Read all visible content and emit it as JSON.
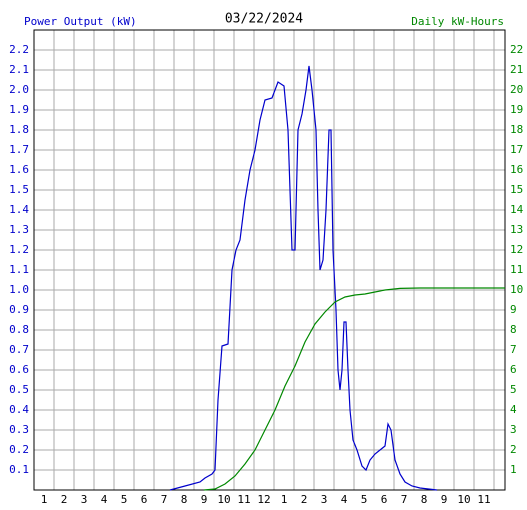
{
  "chart_data": {
    "type": "line",
    "title": "03/22/2024",
    "ylabel": "Power Output (kW)",
    "y2label": "Daily kW-Hours",
    "grid": true,
    "xlim": [
      0.5,
      24.05
    ],
    "xticks": [
      1,
      2,
      3,
      4,
      5,
      6,
      7,
      8,
      9,
      10,
      11,
      12,
      {
        "value": 13,
        "label": "1"
      },
      {
        "value": 14,
        "label": "2"
      },
      {
        "value": 15,
        "label": "3"
      },
      {
        "value": 16,
        "label": "4"
      },
      {
        "value": 17,
        "label": "5"
      },
      {
        "value": 18,
        "label": "6"
      },
      {
        "value": 19,
        "label": "7"
      },
      {
        "value": 20,
        "label": "8"
      },
      {
        "value": 21,
        "label": "9"
      },
      {
        "value": 22,
        "label": "10"
      },
      {
        "value": 23,
        "label": "11"
      }
    ],
    "ylim": [
      0,
      2.3
    ],
    "yticks": [
      0.1,
      0.2,
      0.3,
      0.4,
      0.5,
      0.6,
      0.7,
      0.8,
      0.9,
      {
        "value": 1,
        "label": "1.0"
      },
      1.1,
      1.2,
      1.3,
      1.4,
      1.5,
      1.6,
      1.7,
      1.8,
      1.9,
      {
        "value": 2,
        "label": "2.0"
      },
      2.1,
      2.2
    ],
    "y2lim": [
      0,
      23
    ],
    "y2ticks": [
      1,
      2,
      3,
      4,
      5,
      6,
      7,
      8,
      9,
      10,
      11,
      12,
      13,
      14,
      15,
      16,
      17,
      18,
      19,
      20,
      21,
      22
    ],
    "series": [
      {
        "color": "#0000cc",
        "x": [
          7.3,
          8.05,
          8.8,
          9.05,
          9.4,
          9.55,
          9.7,
          9.9,
          10.2,
          10.4,
          10.6,
          10.8,
          11.05,
          11.3,
          11.55,
          11.8,
          12.05,
          12.4,
          12.7,
          13.0,
          13.2,
          13.4,
          13.55,
          13.7,
          13.9,
          14.1,
          14.25,
          14.4,
          14.6,
          14.7,
          14.8,
          14.95,
          15.1,
          15.25,
          15.35,
          15.45,
          15.6,
          15.7,
          15.8,
          15.9,
          16.0,
          16.1,
          16.2,
          16.3,
          16.45,
          16.65,
          16.9,
          17.1,
          17.3,
          17.55,
          17.8,
          18.05,
          18.2,
          18.35,
          18.55,
          18.8,
          19.05,
          19.4,
          19.8,
          20.65
        ],
        "values": [
          0,
          0.02,
          0.04,
          0.06,
          0.08,
          0.1,
          0.45,
          0.72,
          0.73,
          1.1,
          1.2,
          1.25,
          1.45,
          1.6,
          1.7,
          1.85,
          1.95,
          1.96,
          2.04,
          2.02,
          1.8,
          1.2,
          1.2,
          1.8,
          1.88,
          2.0,
          2.12,
          2.0,
          1.8,
          1.4,
          1.1,
          1.15,
          1.4,
          1.8,
          1.8,
          1.2,
          0.9,
          0.6,
          0.5,
          0.6,
          0.84,
          0.84,
          0.6,
          0.4,
          0.25,
          0.2,
          0.12,
          0.1,
          0.15,
          0.18,
          0.2,
          0.22,
          0.33,
          0.3,
          0.15,
          0.08,
          0.04,
          0.02,
          0.01,
          0
        ]
      },
      {
        "color": "#008800",
        "axis": "y2",
        "x": [
          9.0,
          9.55,
          10.05,
          10.55,
          11.05,
          11.55,
          12.05,
          12.55,
          13.05,
          13.55,
          14.05,
          14.55,
          15.05,
          15.55,
          16.05,
          16.55,
          17.05,
          17.55,
          18.05,
          18.8,
          19.8,
          24.05
        ],
        "values": [
          0,
          0.05,
          0.3,
          0.7,
          1.3,
          2.0,
          3.0,
          4.0,
          5.2,
          6.2,
          7.4,
          8.3,
          8.9,
          9.4,
          9.65,
          9.75,
          9.8,
          9.9,
          10.0,
          10.08,
          10.1,
          10.1
        ]
      }
    ]
  }
}
